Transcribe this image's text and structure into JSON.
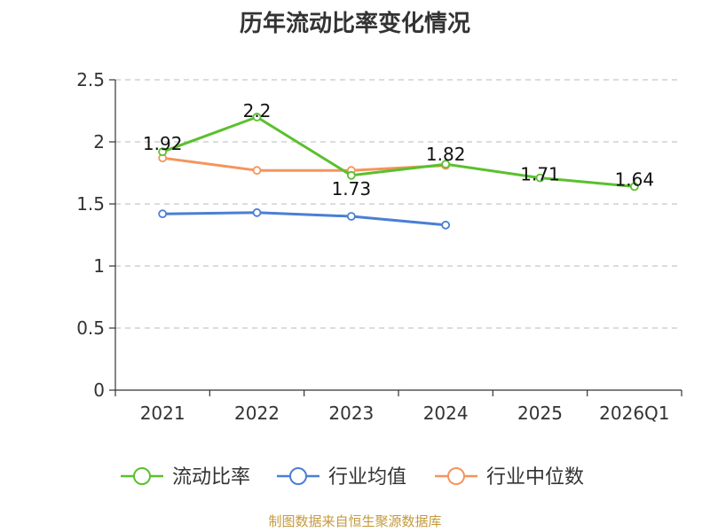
{
  "chart_data": {
    "type": "line",
    "title": "历年流动比率变化情况",
    "categories": [
      "2021",
      "2022",
      "2023",
      "2024",
      "2025",
      "2026Q1"
    ],
    "ylim": [
      0,
      2.5
    ],
    "yticks": [
      0,
      0.5,
      1,
      1.5,
      2,
      2.5
    ],
    "ytick_labels": [
      "0",
      "0.5",
      "1",
      "1.5",
      "2",
      "2.5"
    ],
    "grid": true,
    "legend_position": "bottom",
    "series": [
      {
        "name": "流动比率",
        "color": "#5ac02e",
        "values": [
          1.92,
          2.2,
          1.73,
          1.82,
          1.71,
          1.64
        ],
        "labels": [
          "1.92",
          "2.2",
          "1.73",
          "1.82",
          "1.71",
          "1.64"
        ]
      },
      {
        "name": "行业均值",
        "color": "#4a7fd4",
        "values": [
          1.42,
          1.43,
          1.4,
          1.33,
          null,
          null
        ],
        "labels": []
      },
      {
        "name": "行业中位数",
        "color": "#f5945c",
        "values": [
          1.87,
          1.77,
          1.77,
          1.81,
          null,
          null
        ],
        "labels": []
      }
    ]
  },
  "source_note": "制图数据来自恒生聚源数据库"
}
